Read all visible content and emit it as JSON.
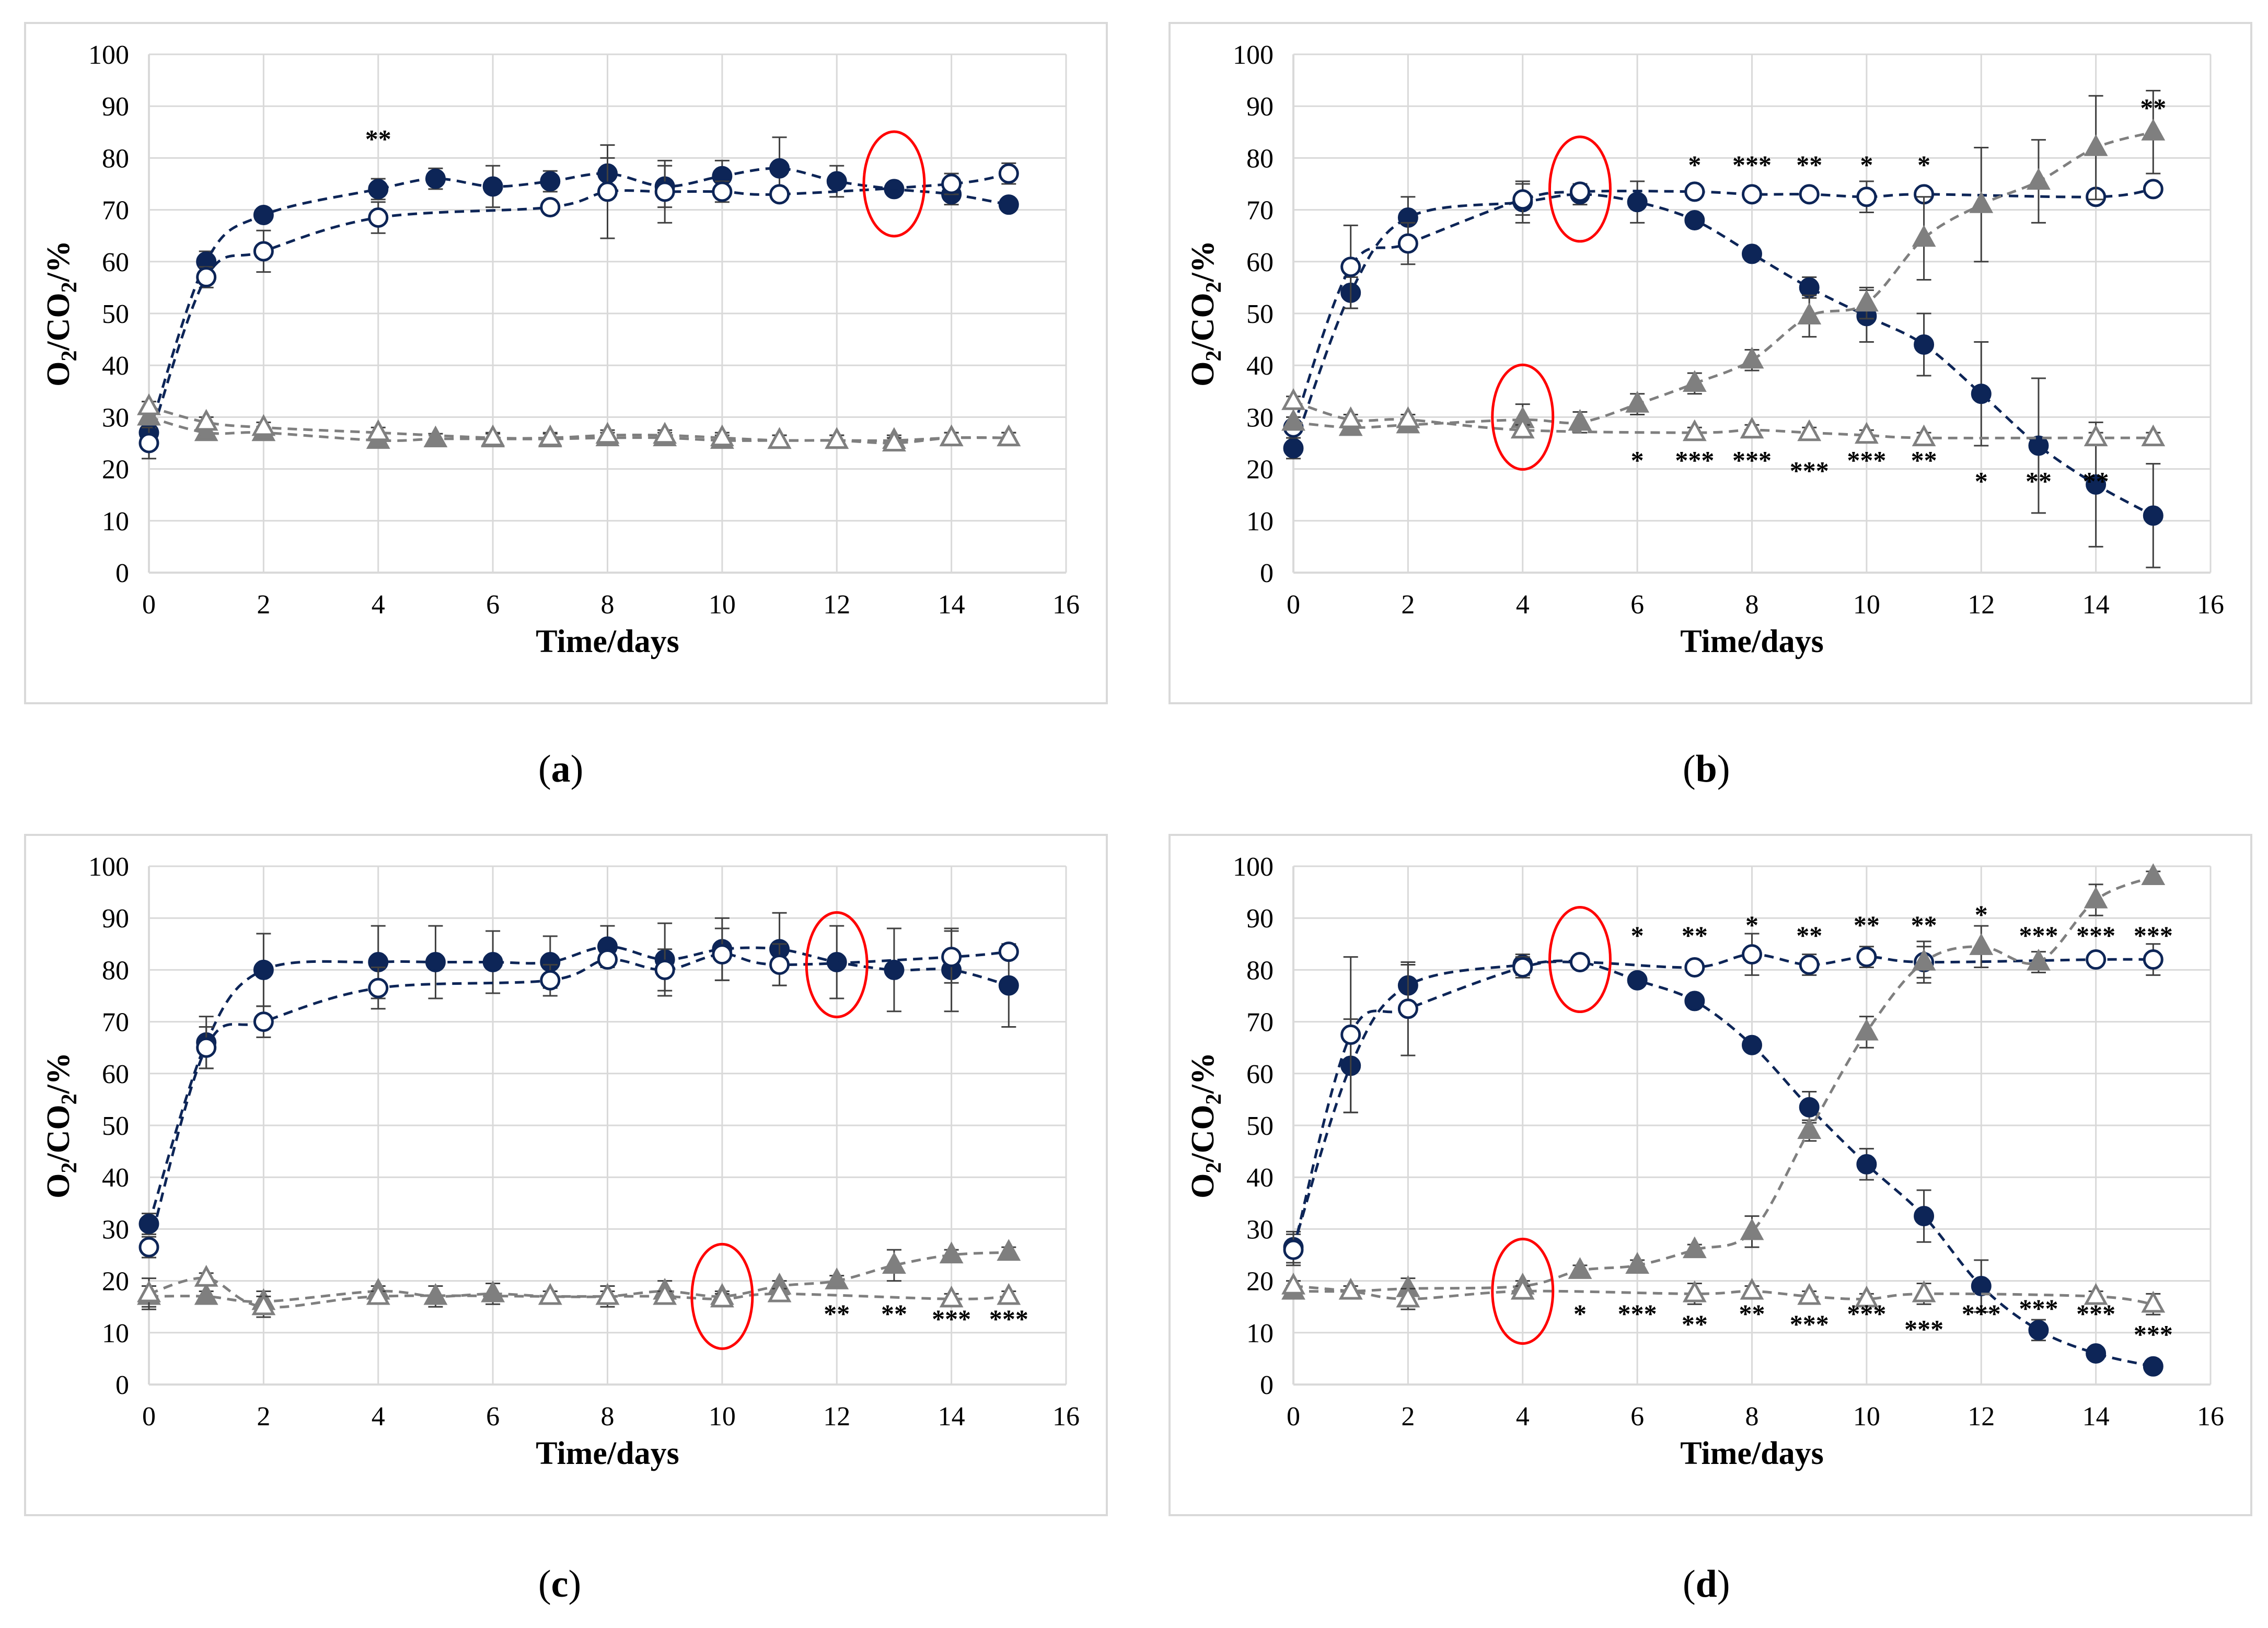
{
  "colors": {
    "navy": "#0d2557",
    "gray": "#7f7f7f",
    "gridline": "#d9d9d9",
    "highlight": "#ff0000"
  },
  "chart_data": [
    {
      "id": "a",
      "type": "line",
      "caption_open": "(",
      "caption_letter": "a",
      "caption_close": ")",
      "xlabel": "Time/days",
      "ylabel": "O2/CO2/%",
      "xlim": [
        0,
        16
      ],
      "ylim": [
        0,
        100
      ],
      "xticks": [
        0,
        2,
        4,
        6,
        8,
        10,
        12,
        14,
        16
      ],
      "yticks": [
        0,
        10,
        20,
        30,
        40,
        50,
        60,
        70,
        80,
        90,
        100
      ],
      "grid": true,
      "series": [
        {
          "name": "O2 filled",
          "style": "navy-filled-circle",
          "x": [
            0,
            1,
            2,
            4,
            5,
            6,
            7,
            8,
            9,
            10,
            11,
            12,
            13,
            14,
            15
          ],
          "y": [
            27,
            60,
            69,
            74,
            76,
            74.5,
            75.5,
            77,
            74.5,
            76.5,
            78,
            75.5,
            74,
            73,
            71
          ],
          "err": [
            2,
            2,
            1,
            2,
            2,
            4,
            2,
            3,
            4,
            3,
            6,
            3,
            1,
            2,
            1
          ]
        },
        {
          "name": "O2 open",
          "style": "navy-open-circle",
          "x": [
            0,
            1,
            2,
            4,
            7,
            8,
            9,
            10,
            11,
            14,
            15
          ],
          "y": [
            25,
            57,
            62,
            68.5,
            70.5,
            73.5,
            73.5,
            73.5,
            73,
            75,
            77
          ],
          "err": [
            3,
            2,
            4,
            3,
            1,
            9,
            6,
            2,
            1,
            2,
            2
          ]
        },
        {
          "name": "CO2 filled",
          "style": "gray-filled-triangle",
          "x": [
            0,
            1,
            2,
            4,
            5,
            6,
            7,
            8,
            9,
            10,
            11,
            12,
            13,
            14,
            15
          ],
          "y": [
            30,
            27,
            27,
            25.5,
            25.8,
            25.8,
            25.8,
            26,
            26,
            25.5,
            25.5,
            25.5,
            25.5,
            26,
            26
          ],
          "err": [
            1,
            1,
            1,
            1,
            1,
            1,
            1,
            1,
            1,
            1,
            1,
            1,
            1,
            1,
            1
          ]
        },
        {
          "name": "CO2 open",
          "style": "gray-open-triangle",
          "x": [
            0,
            1,
            2,
            4,
            6,
            7,
            8,
            9,
            10,
            11,
            12,
            13,
            14,
            15
          ],
          "y": [
            32,
            29,
            28,
            27,
            26,
            26,
            26.5,
            26.5,
            26,
            25.5,
            25.5,
            25,
            26,
            26
          ],
          "err": [
            1,
            1,
            1,
            1,
            1,
            1,
            1,
            1,
            1,
            1,
            1,
            1,
            1,
            1
          ]
        }
      ],
      "annotations": [
        {
          "x": 4,
          "y": 82,
          "text": "**"
        }
      ],
      "highlights": [
        {
          "x": 13,
          "y": 75
        }
      ]
    },
    {
      "id": "b",
      "type": "line",
      "caption_open": "(",
      "caption_letter": "b",
      "caption_close": ")",
      "xlabel": "Time/days",
      "ylabel": "O2/CO2/%",
      "xlim": [
        0,
        16
      ],
      "ylim": [
        0,
        100
      ],
      "xticks": [
        0,
        2,
        4,
        6,
        8,
        10,
        12,
        14,
        16
      ],
      "yticks": [
        0,
        10,
        20,
        30,
        40,
        50,
        60,
        70,
        80,
        90,
        100
      ],
      "grid": true,
      "series": [
        {
          "name": "O2 filled",
          "style": "navy-filled-circle",
          "x": [
            0,
            1,
            2,
            4,
            5,
            6,
            7,
            8,
            9,
            10,
            11,
            12,
            13,
            14,
            15
          ],
          "y": [
            24,
            54,
            68.5,
            71.5,
            73,
            71.5,
            68,
            61.5,
            55,
            49.5,
            44,
            34.5,
            24.5,
            17,
            11
          ],
          "err": [
            2,
            3,
            4,
            4,
            2,
            4,
            1,
            1,
            2,
            5,
            6,
            10,
            13,
            12,
            10
          ]
        },
        {
          "name": "O2 open",
          "style": "navy-open-circle",
          "x": [
            0,
            1,
            2,
            4,
            5,
            7,
            8,
            9,
            10,
            11,
            14,
            15
          ],
          "y": [
            28,
            59,
            63.5,
            72,
            73.5,
            73.5,
            73,
            73,
            72.5,
            73,
            72.5,
            74
          ],
          "err": [
            2,
            8,
            4,
            3,
            1,
            1,
            1,
            1,
            3,
            1,
            1,
            1
          ]
        },
        {
          "name": "CO2 filled",
          "style": "gray-filled-triangle",
          "x": [
            0,
            1,
            2,
            4,
            5,
            6,
            7,
            8,
            9,
            10,
            11,
            12,
            13,
            14,
            15
          ],
          "y": [
            29,
            28,
            28.5,
            29.5,
            29,
            32.5,
            36.5,
            41,
            49.5,
            52,
            64.5,
            71,
            75.5,
            82,
            85
          ],
          "err": [
            1,
            1,
            1,
            3,
            2,
            2,
            2,
            2,
            4,
            3,
            8,
            11,
            8,
            10,
            8
          ]
        },
        {
          "name": "CO2 open",
          "style": "gray-open-triangle",
          "x": [
            0,
            1,
            2,
            4,
            7,
            8,
            9,
            10,
            11,
            14,
            15
          ],
          "y": [
            33,
            29.5,
            29.5,
            27.5,
            27,
            27.5,
            27,
            26.5,
            26,
            26,
            26
          ],
          "err": [
            1,
            1,
            1,
            1,
            1,
            1,
            1,
            1,
            1,
            1,
            1
          ]
        }
      ],
      "annotations": [
        {
          "x": 7,
          "y": 77,
          "text": "*"
        },
        {
          "x": 8,
          "y": 77,
          "text": "***"
        },
        {
          "x": 9,
          "y": 77,
          "text": "**"
        },
        {
          "x": 10,
          "y": 77,
          "text": "*"
        },
        {
          "x": 11,
          "y": 77,
          "text": "*"
        },
        {
          "x": 15,
          "y": 88,
          "text": "**"
        },
        {
          "x": 6,
          "y": 20,
          "text": "*"
        },
        {
          "x": 7,
          "y": 20,
          "text": "***"
        },
        {
          "x": 8,
          "y": 20,
          "text": "***"
        },
        {
          "x": 9,
          "y": 18,
          "text": "***"
        },
        {
          "x": 10,
          "y": 20,
          "text": "***"
        },
        {
          "x": 11,
          "y": 20,
          "text": "**"
        },
        {
          "x": 12,
          "y": 16,
          "text": "*"
        },
        {
          "x": 13,
          "y": 16,
          "text": "**"
        },
        {
          "x": 14,
          "y": 16,
          "text": "**"
        }
      ],
      "highlights": [
        {
          "x": 5,
          "y": 74
        },
        {
          "x": 4,
          "y": 30
        }
      ]
    },
    {
      "id": "c",
      "type": "line",
      "caption_open": "(",
      "caption_letter": "c",
      "caption_close": ")",
      "xlabel": "Time/days",
      "ylabel": "O2/CO2/%",
      "xlim": [
        0,
        16
      ],
      "ylim": [
        0,
        100
      ],
      "xticks": [
        0,
        2,
        4,
        6,
        8,
        10,
        12,
        14,
        16
      ],
      "yticks": [
        0,
        10,
        20,
        30,
        40,
        50,
        60,
        70,
        80,
        90,
        100
      ],
      "grid": true,
      "series": [
        {
          "name": "O2 filled",
          "style": "navy-filled-circle",
          "x": [
            0,
            1,
            2,
            4,
            5,
            6,
            7,
            8,
            9,
            10,
            11,
            12,
            13,
            14,
            15
          ],
          "y": [
            31,
            66,
            80,
            81.5,
            81.5,
            81.5,
            81.5,
            84.5,
            82,
            84,
            84,
            81.5,
            80,
            80,
            77
          ],
          "err": [
            2,
            5,
            7,
            7,
            7,
            6,
            5,
            4,
            7,
            6,
            7,
            7,
            8,
            8,
            8
          ]
        },
        {
          "name": "O2 open",
          "style": "navy-open-circle",
          "x": [
            0,
            1,
            2,
            4,
            7,
            8,
            9,
            10,
            11,
            14,
            15
          ],
          "y": [
            26.5,
            65,
            70,
            76.5,
            78,
            82,
            80,
            83,
            81,
            82.5,
            83.5
          ],
          "err": [
            2,
            4,
            3,
            4,
            3,
            1,
            4,
            5,
            4,
            5,
            1
          ]
        },
        {
          "name": "CO2 filled",
          "style": "gray-filled-triangle",
          "x": [
            0,
            1,
            2,
            4,
            5,
            6,
            7,
            8,
            9,
            10,
            11,
            12,
            13,
            14,
            15
          ],
          "y": [
            17,
            17,
            16,
            18,
            17,
            17.5,
            17,
            17,
            18,
            17,
            19,
            20,
            23,
            25,
            25.5
          ],
          "err": [
            2,
            1,
            2,
            1,
            2,
            2,
            1,
            2,
            2,
            1,
            1,
            1,
            3,
            1,
            1
          ]
        },
        {
          "name": "CO2 open",
          "style": "gray-open-triangle",
          "x": [
            0,
            1,
            2,
            4,
            7,
            8,
            9,
            10,
            11,
            14,
            15
          ],
          "y": [
            17.5,
            20.5,
            15,
            17,
            17,
            17,
            17,
            16.5,
            17.5,
            16.5,
            17
          ],
          "err": [
            3,
            1,
            2,
            1,
            1,
            1,
            1,
            1,
            1,
            1,
            1
          ]
        }
      ],
      "annotations": [
        {
          "x": 12,
          "y": 12,
          "text": "**"
        },
        {
          "x": 13,
          "y": 12,
          "text": "**"
        },
        {
          "x": 14,
          "y": 11,
          "text": "***"
        },
        {
          "x": 15,
          "y": 11,
          "text": "***"
        }
      ],
      "highlights": [
        {
          "x": 12,
          "y": 81
        },
        {
          "x": 10,
          "y": 17
        }
      ]
    },
    {
      "id": "d",
      "type": "line",
      "caption_open": "(",
      "caption_letter": "d",
      "caption_close": ")",
      "xlabel": "Time/days",
      "ylabel": "O2/CO2/%",
      "xlim": [
        0,
        16
      ],
      "ylim": [
        0,
        100
      ],
      "xticks": [
        0,
        2,
        4,
        6,
        8,
        10,
        12,
        14,
        16
      ],
      "yticks": [
        0,
        10,
        20,
        30,
        40,
        50,
        60,
        70,
        80,
        90,
        100
      ],
      "grid": true,
      "series": [
        {
          "name": "O2 filled",
          "style": "navy-filled-circle",
          "x": [
            0,
            1,
            2,
            4,
            5,
            6,
            7,
            8,
            9,
            10,
            11,
            12,
            13,
            14,
            15
          ],
          "y": [
            26.5,
            61.5,
            77,
            81,
            81.5,
            78,
            74,
            65.5,
            53.5,
            42.5,
            32.5,
            19,
            10.5,
            6,
            3.5
          ],
          "err": [
            3,
            9,
            4,
            2,
            1,
            1,
            1,
            1,
            3,
            3,
            5,
            5,
            2,
            1,
            1
          ]
        },
        {
          "name": "O2 open",
          "style": "navy-open-circle",
          "x": [
            0,
            1,
            2,
            4,
            5,
            7,
            8,
            9,
            10,
            11,
            14,
            15
          ],
          "y": [
            26,
            67.5,
            72.5,
            80.5,
            81.5,
            80.5,
            83,
            81,
            82.5,
            81.5,
            82,
            82
          ],
          "err": [
            3,
            15,
            9,
            2,
            1,
            1,
            4,
            2,
            2,
            4,
            1,
            3
          ]
        },
        {
          "name": "CO2 filled",
          "style": "gray-filled-triangle",
          "x": [
            0,
            1,
            2,
            4,
            5,
            6,
            7,
            8,
            9,
            10,
            11,
            12,
            13,
            14,
            15
          ],
          "y": [
            18,
            18,
            18.5,
            19,
            22,
            23,
            26,
            29.5,
            49,
            68,
            81.5,
            84.5,
            81.5,
            93.5,
            98
          ],
          "err": [
            1,
            1,
            2,
            1,
            1,
            1,
            1,
            3,
            2,
            3,
            3,
            4,
            2,
            3,
            1
          ]
        },
        {
          "name": "CO2 open",
          "style": "gray-open-triangle",
          "x": [
            0,
            1,
            2,
            4,
            7,
            8,
            9,
            10,
            11,
            14,
            15
          ],
          "y": [
            19,
            18,
            16.5,
            18,
            17.5,
            18,
            17,
            16.5,
            17.5,
            17,
            15.5
          ],
          "err": [
            1,
            1,
            2,
            1,
            2,
            1,
            1,
            1,
            2,
            1,
            2
          ]
        }
      ],
      "annotations": [
        {
          "x": 6,
          "y": 85,
          "text": "*"
        },
        {
          "x": 7,
          "y": 85,
          "text": "**"
        },
        {
          "x": 8,
          "y": 87,
          "text": "*"
        },
        {
          "x": 9,
          "y": 85,
          "text": "**"
        },
        {
          "x": 10,
          "y": 87,
          "text": "**"
        },
        {
          "x": 11,
          "y": 87,
          "text": "**"
        },
        {
          "x": 12,
          "y": 89,
          "text": "*"
        },
        {
          "x": 13,
          "y": 85,
          "text": "***"
        },
        {
          "x": 14,
          "y": 85,
          "text": "***"
        },
        {
          "x": 15,
          "y": 85,
          "text": "***"
        },
        {
          "x": 5,
          "y": 12,
          "text": "*"
        },
        {
          "x": 6,
          "y": 12,
          "text": "***"
        },
        {
          "x": 7,
          "y": 10,
          "text": "**"
        },
        {
          "x": 8,
          "y": 12,
          "text": "**"
        },
        {
          "x": 9,
          "y": 10,
          "text": "***"
        },
        {
          "x": 10,
          "y": 12,
          "text": "***"
        },
        {
          "x": 11,
          "y": 9,
          "text": "***"
        },
        {
          "x": 12,
          "y": 12,
          "text": "***"
        },
        {
          "x": 13,
          "y": 13,
          "text": "***"
        },
        {
          "x": 14,
          "y": 12,
          "text": "***"
        },
        {
          "x": 15,
          "y": 8,
          "text": "***"
        }
      ],
      "highlights": [
        {
          "x": 5,
          "y": 82
        },
        {
          "x": 4,
          "y": 18
        }
      ]
    }
  ]
}
